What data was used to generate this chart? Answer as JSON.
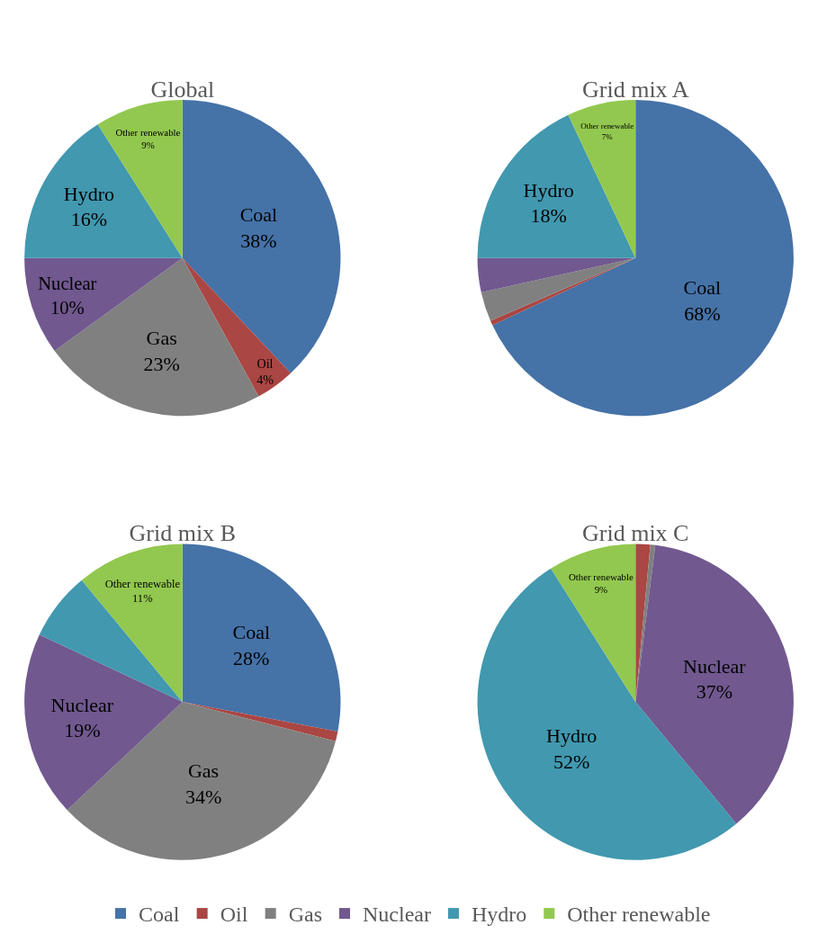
{
  "chart_data": [
    {
      "type": "pie",
      "title": "Global",
      "categories": [
        "Coal",
        "Oil",
        "Gas",
        "Nuclear",
        "Hydro",
        "Other renewable"
      ],
      "values": [
        38,
        4,
        23,
        10,
        16,
        9
      ],
      "colors": [
        "#4572a7",
        "#aa4643",
        "#808080",
        "#71588f",
        "#4198af",
        "#92c84f"
      ],
      "value_labels": [
        "38%",
        "4%",
        "23%",
        "10%",
        "16%",
        "9%"
      ],
      "legend": "bottom"
    },
    {
      "type": "pie",
      "title": "Grid mix A",
      "categories": [
        "Coal",
        null,
        null,
        null,
        "Hydro",
        "Other renewable"
      ],
      "values": [
        68,
        0.5,
        3,
        3.5,
        18,
        7
      ],
      "colors": [
        "#4572a7",
        "#aa4643",
        "#808080",
        "#71588f",
        "#4198af",
        "#92c84f"
      ],
      "value_labels": [
        "68%",
        null,
        null,
        null,
        "18%",
        "7%"
      ]
    },
    {
      "type": "pie",
      "title": "Grid mix B",
      "categories": [
        "Coal",
        null,
        "Gas",
        "Nuclear",
        null,
        "Other renewable"
      ],
      "values": [
        28,
        1,
        34,
        19,
        7,
        11
      ],
      "colors": [
        "#4572a7",
        "#aa4643",
        "#808080",
        "#71588f",
        "#4198af",
        "#92c84f"
      ],
      "value_labels": [
        "28%",
        null,
        "34%",
        "19%",
        null,
        "11%"
      ]
    },
    {
      "type": "pie",
      "title": "Grid mix C",
      "categories": [
        null,
        null,
        null,
        "Nuclear",
        "Hydro",
        "Other renewable"
      ],
      "values": [
        0,
        1.5,
        0.5,
        37,
        52,
        9
      ],
      "colors": [
        "#4572a7",
        "#aa4643",
        "#808080",
        "#71588f",
        "#4198af",
        "#92c84f"
      ],
      "value_labels": [
        null,
        null,
        null,
        "37%",
        "52%",
        "9%"
      ]
    }
  ]
}
